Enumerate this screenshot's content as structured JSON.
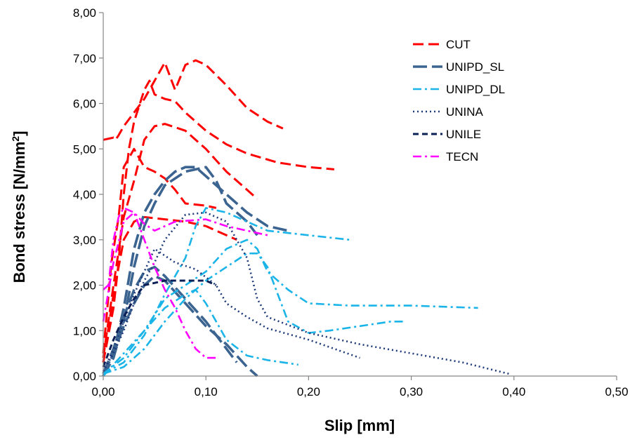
{
  "chart_data": {
    "type": "line",
    "title": "",
    "xlabel": "Slip [mm]",
    "ylabel_main": "Bond stress [N/mm",
    "ylabel_sup": "2",
    "ylabel_end": "]",
    "xlim": [
      0,
      0.5
    ],
    "ylim": [
      0,
      8
    ],
    "x_ticks": [
      "0,00",
      "0,10",
      "0,20",
      "0,30",
      "0,40",
      "0,50"
    ],
    "y_ticks": [
      "0,00",
      "1,00",
      "2,00",
      "3,00",
      "4,00",
      "5,00",
      "6,00",
      "7,00",
      "8,00"
    ],
    "grid": false,
    "legend_position": "top-right",
    "series": [
      {
        "name": "CUT",
        "color": "#ff0000",
        "dash": "long-dash",
        "curves": [
          [
            [
              0.0,
              5.2
            ],
            [
              0.01,
              5.25
            ],
            [
              0.012,
              5.2
            ],
            [
              0.015,
              5.3
            ],
            [
              0.02,
              5.5
            ],
            [
              0.03,
              5.8
            ],
            [
              0.04,
              6.1
            ],
            [
              0.05,
              6.5
            ],
            [
              0.06,
              6.9
            ],
            [
              0.07,
              6.3
            ],
            [
              0.08,
              6.85
            ],
            [
              0.09,
              6.95
            ],
            [
              0.1,
              6.85
            ],
            [
              0.12,
              6.4
            ],
            [
              0.14,
              5.9
            ],
            [
              0.16,
              5.6
            ],
            [
              0.175,
              5.45
            ]
          ],
          [
            [
              0.0,
              0.3
            ],
            [
              0.01,
              1.5
            ],
            [
              0.015,
              2.5
            ],
            [
              0.02,
              4.0
            ],
            [
              0.025,
              5.0
            ],
            [
              0.03,
              5.6
            ],
            [
              0.04,
              6.3
            ],
            [
              0.045,
              6.5
            ],
            [
              0.05,
              6.2
            ],
            [
              0.06,
              6.1
            ],
            [
              0.07,
              6.05
            ],
            [
              0.08,
              5.8
            ],
            [
              0.1,
              5.4
            ],
            [
              0.12,
              5.1
            ],
            [
              0.14,
              4.9
            ],
            [
              0.17,
              4.7
            ],
            [
              0.2,
              4.6
            ],
            [
              0.225,
              4.55
            ]
          ],
          [
            [
              0.0,
              0.4
            ],
            [
              0.01,
              2.0
            ],
            [
              0.02,
              3.5
            ],
            [
              0.03,
              4.3
            ],
            [
              0.04,
              5.2
            ],
            [
              0.05,
              5.5
            ],
            [
              0.06,
              5.55
            ],
            [
              0.08,
              5.4
            ],
            [
              0.1,
              5.0
            ],
            [
              0.12,
              4.5
            ],
            [
              0.14,
              4.1
            ],
            [
              0.15,
              3.9
            ]
          ],
          [
            [
              0.0,
              0.5
            ],
            [
              0.008,
              2.5
            ],
            [
              0.015,
              3.5
            ],
            [
              0.02,
              4.6
            ],
            [
              0.03,
              5.0
            ],
            [
              0.04,
              4.6
            ],
            [
              0.05,
              4.5
            ],
            [
              0.06,
              4.35
            ],
            [
              0.07,
              4.1
            ],
            [
              0.08,
              3.8
            ],
            [
              0.1,
              3.75
            ],
            [
              0.11,
              3.7
            ]
          ],
          [
            [
              0.0,
              0.3
            ],
            [
              0.01,
              1.8
            ],
            [
              0.02,
              3.0
            ],
            [
              0.03,
              3.4
            ],
            [
              0.04,
              3.5
            ],
            [
              0.06,
              3.45
            ],
            [
              0.08,
              3.4
            ],
            [
              0.1,
              3.3
            ],
            [
              0.12,
              3.1
            ],
            [
              0.13,
              3.0
            ]
          ]
        ]
      },
      {
        "name": "UNIPD_SL",
        "color": "#3c6491",
        "dash": "long-dash-heavy",
        "curves": [
          [
            [
              0.0,
              0.0
            ],
            [
              0.01,
              0.5
            ],
            [
              0.02,
              1.5
            ],
            [
              0.03,
              2.8
            ],
            [
              0.04,
              3.6
            ],
            [
              0.05,
              4.0
            ],
            [
              0.06,
              4.3
            ],
            [
              0.07,
              4.5
            ],
            [
              0.08,
              4.6
            ],
            [
              0.09,
              4.6
            ],
            [
              0.1,
              4.4
            ],
            [
              0.12,
              4.0
            ],
            [
              0.14,
              3.6
            ],
            [
              0.16,
              3.3
            ],
            [
              0.18,
              3.2
            ]
          ],
          [
            [
              0.0,
              0.0
            ],
            [
              0.01,
              0.4
            ],
            [
              0.02,
              1.2
            ],
            [
              0.03,
              2.4
            ],
            [
              0.04,
              3.3
            ],
            [
              0.05,
              3.8
            ],
            [
              0.06,
              4.2
            ],
            [
              0.08,
              4.5
            ],
            [
              0.1,
              4.6
            ],
            [
              0.11,
              4.3
            ],
            [
              0.12,
              3.8
            ],
            [
              0.14,
              3.4
            ],
            [
              0.15,
              3.1
            ]
          ],
          [
            [
              0.0,
              0.05
            ],
            [
              0.01,
              0.6
            ],
            [
              0.02,
              1.3
            ],
            [
              0.03,
              1.9
            ],
            [
              0.04,
              2.3
            ],
            [
              0.05,
              2.4
            ],
            [
              0.06,
              2.2
            ],
            [
              0.08,
              1.7
            ],
            [
              0.1,
              1.2
            ],
            [
              0.12,
              0.6
            ],
            [
              0.13,
              0.3
            ]
          ],
          [
            [
              0.0,
              0.05
            ],
            [
              0.01,
              0.5
            ],
            [
              0.02,
              1.1
            ],
            [
              0.03,
              1.6
            ],
            [
              0.04,
              2.0
            ],
            [
              0.05,
              2.2
            ],
            [
              0.06,
              2.1
            ],
            [
              0.08,
              1.6
            ],
            [
              0.1,
              1.1
            ],
            [
              0.12,
              0.7
            ],
            [
              0.14,
              0.2
            ],
            [
              0.15,
              0.0
            ]
          ]
        ]
      },
      {
        "name": "UNIPD_DL",
        "color": "#1ab4e8",
        "dash": "dash-dot",
        "curves": [
          [
            [
              0.0,
              0.05
            ],
            [
              0.02,
              0.3
            ],
            [
              0.04,
              0.9
            ],
            [
              0.06,
              1.8
            ],
            [
              0.08,
              2.6
            ],
            [
              0.09,
              3.3
            ],
            [
              0.1,
              3.7
            ],
            [
              0.12,
              3.6
            ],
            [
              0.14,
              3.4
            ],
            [
              0.16,
              3.2
            ],
            [
              0.2,
              3.1
            ],
            [
              0.24,
              3.0
            ]
          ],
          [
            [
              0.0,
              0.05
            ],
            [
              0.02,
              0.4
            ],
            [
              0.04,
              1.0
            ],
            [
              0.06,
              1.7
            ],
            [
              0.08,
              2.0
            ],
            [
              0.1,
              2.3
            ],
            [
              0.12,
              2.8
            ],
            [
              0.14,
              3.0
            ],
            [
              0.15,
              2.8
            ],
            [
              0.16,
              2.3
            ],
            [
              0.18,
              1.9
            ],
            [
              0.2,
              1.6
            ],
            [
              0.24,
              1.55
            ],
            [
              0.3,
              1.55
            ],
            [
              0.365,
              1.5
            ]
          ],
          [
            [
              0.0,
              0.05
            ],
            [
              0.02,
              0.2
            ],
            [
              0.04,
              0.6
            ],
            [
              0.06,
              1.2
            ],
            [
              0.08,
              1.7
            ],
            [
              0.1,
              2.1
            ],
            [
              0.12,
              2.4
            ],
            [
              0.14,
              2.7
            ],
            [
              0.15,
              2.7
            ],
            [
              0.16,
              2.4
            ],
            [
              0.18,
              1.2
            ],
            [
              0.2,
              0.95
            ],
            [
              0.22,
              1.0
            ],
            [
              0.25,
              1.1
            ],
            [
              0.28,
              1.2
            ],
            [
              0.295,
              1.2
            ]
          ],
          [
            [
              0.0,
              0.0
            ],
            [
              0.02,
              0.5
            ],
            [
              0.04,
              1.0
            ],
            [
              0.06,
              1.5
            ],
            [
              0.08,
              1.8
            ],
            [
              0.09,
              1.9
            ],
            [
              0.1,
              1.6
            ],
            [
              0.12,
              0.8
            ],
            [
              0.14,
              0.45
            ],
            [
              0.16,
              0.35
            ],
            [
              0.19,
              0.25
            ]
          ]
        ]
      },
      {
        "name": "UNINA",
        "color": "#1f3a7a",
        "dash": "dotted",
        "curves": [
          [
            [
              0.0,
              0.1
            ],
            [
              0.01,
              0.5
            ],
            [
              0.02,
              1.0
            ],
            [
              0.03,
              1.6
            ],
            [
              0.04,
              2.1
            ],
            [
              0.05,
              2.5
            ],
            [
              0.06,
              3.0
            ],
            [
              0.08,
              3.55
            ],
            [
              0.1,
              3.6
            ],
            [
              0.12,
              3.4
            ],
            [
              0.14,
              2.6
            ],
            [
              0.15,
              1.7
            ],
            [
              0.16,
              1.3
            ],
            [
              0.2,
              0.95
            ],
            [
              0.25,
              0.7
            ],
            [
              0.3,
              0.5
            ],
            [
              0.35,
              0.3
            ],
            [
              0.395,
              0.05
            ]
          ],
          [
            [
              0.0,
              0.1
            ],
            [
              0.01,
              0.6
            ],
            [
              0.02,
              1.2
            ],
            [
              0.03,
              1.8
            ],
            [
              0.05,
              2.8
            ],
            [
              0.07,
              2.5
            ],
            [
              0.09,
              2.35
            ],
            [
              0.11,
              2.0
            ],
            [
              0.12,
              1.6
            ],
            [
              0.14,
              1.3
            ],
            [
              0.16,
              1.05
            ],
            [
              0.2,
              0.8
            ],
            [
              0.25,
              0.4
            ]
          ]
        ]
      },
      {
        "name": "UNILE",
        "color": "#0a1f55",
        "dash": "dash",
        "curves": [
          [
            [
              0.0,
              0.2
            ],
            [
              0.01,
              0.8
            ],
            [
              0.02,
              1.3
            ],
            [
              0.03,
              1.7
            ],
            [
              0.04,
              2.0
            ],
            [
              0.06,
              2.1
            ],
            [
              0.08,
              2.1
            ],
            [
              0.1,
              2.1
            ],
            [
              0.11,
              2.0
            ]
          ]
        ]
      },
      {
        "name": "TECN",
        "color": "#ff00ff",
        "dash": "dash-dot",
        "curves": [
          [
            [
              0.0,
              1.9
            ],
            [
              0.005,
              2.0
            ],
            [
              0.01,
              3.0
            ],
            [
              0.015,
              3.5
            ],
            [
              0.02,
              3.7
            ],
            [
              0.03,
              3.6
            ],
            [
              0.04,
              3.35
            ],
            [
              0.05,
              3.2
            ],
            [
              0.07,
              3.4
            ],
            [
              0.1,
              3.45
            ],
            [
              0.12,
              3.3
            ],
            [
              0.14,
              3.2
            ],
            [
              0.16,
              3.1
            ]
          ],
          [
            [
              0.0,
              1.2
            ],
            [
              0.01,
              2.5
            ],
            [
              0.02,
              3.4
            ],
            [
              0.03,
              3.6
            ],
            [
              0.04,
              3.0
            ],
            [
              0.05,
              2.4
            ],
            [
              0.06,
              1.9
            ],
            [
              0.07,
              1.5
            ],
            [
              0.08,
              1.0
            ],
            [
              0.09,
              0.6
            ],
            [
              0.1,
              0.4
            ],
            [
              0.11,
              0.4
            ]
          ]
        ]
      }
    ]
  }
}
